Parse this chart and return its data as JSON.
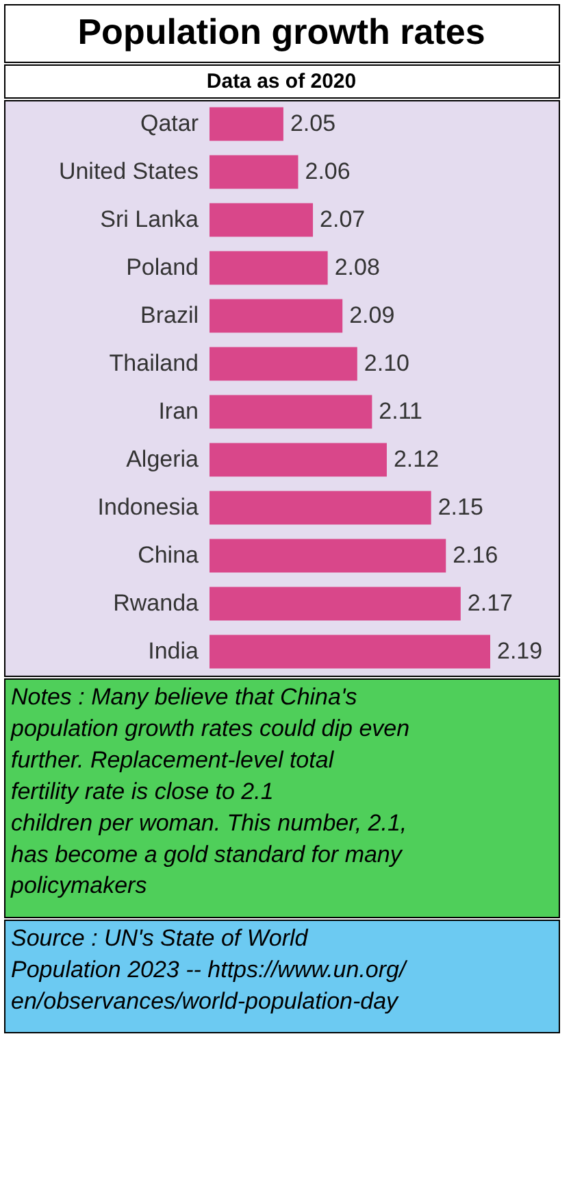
{
  "chart_data": {
    "type": "bar",
    "orientation": "horizontal",
    "title": "Population growth rates",
    "subtitle": "Data as of 2020",
    "categories": [
      "Qatar",
      "United States",
      "Sri Lanka",
      "Poland",
      "Brazil",
      "Thailand",
      "Iran",
      "Algeria",
      "Indonesia",
      "China",
      "Rwanda",
      "India"
    ],
    "values": [
      2.05,
      2.06,
      2.07,
      2.08,
      2.09,
      2.1,
      2.11,
      2.12,
      2.15,
      2.16,
      2.17,
      2.19
    ],
    "value_labels": [
      "2.05",
      "2.06",
      "2.07",
      "2.08",
      "2.09",
      "2.10",
      "2.11",
      "2.12",
      "2.15",
      "2.16",
      "2.17",
      "2.19"
    ],
    "color": "#d9478a",
    "xlim": [
      2.0,
      2.19
    ],
    "tick_labels": "y",
    "grid": false,
    "annotations": [
      "Notes : Many believe that China's population growth rates could dip even further.  Replacement-level total fertility rate is close to 2.1 children per woman. This number, 2.1, has become a gold standard for many policymakers",
      "Source : UN's State of World Population 2023 -- https://www.un.org/en/observances/world-population-day"
    ]
  }
}
